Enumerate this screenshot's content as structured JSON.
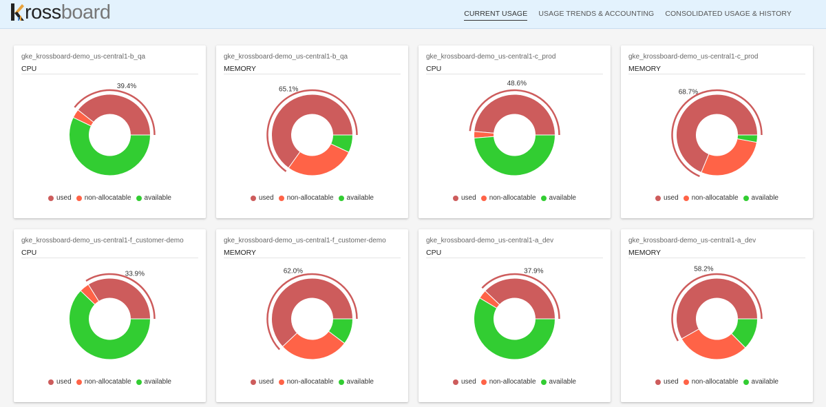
{
  "app": {
    "logo_first": "k",
    "logo_rest_dark": "ross",
    "logo_rest_light": "board"
  },
  "nav": [
    {
      "label": "Current Usage",
      "active": true
    },
    {
      "label": "Usage Trends & Accounting",
      "active": false
    },
    {
      "label": "Consolidated Usage & History",
      "active": false
    }
  ],
  "colors": {
    "used": "#cd5c5c",
    "non_allocatable": "#ff6347",
    "available": "#32cd32",
    "arc": "#cd5c5c"
  },
  "legend": {
    "used": "used",
    "non_allocatable": "non-allocatable",
    "available": "available"
  },
  "cards": [
    {
      "cluster": "gke_krossboard-demo_us-central1-b_qa",
      "resource": "CPU",
      "percent_label": "39.4%",
      "used": 39.4,
      "non_allocatable": 3.5,
      "available": 57.1
    },
    {
      "cluster": "gke_krossboard-demo_us-central1-b_qa",
      "resource": "MEMORY",
      "percent_label": "65.1%",
      "used": 65.1,
      "non_allocatable": 27.9,
      "available": 7.0
    },
    {
      "cluster": "gke_krossboard-demo_us-central1-c_prod",
      "resource": "CPU",
      "percent_label": "48.6%",
      "used": 48.6,
      "non_allocatable": 2.6,
      "available": 48.8
    },
    {
      "cluster": "gke_krossboard-demo_us-central1-c_prod",
      "resource": "MEMORY",
      "percent_label": "68.7%",
      "used": 68.7,
      "non_allocatable": 28.4,
      "available": 2.9
    },
    {
      "cluster": "gke_krossboard-demo_us-central1-f_customer-demo",
      "resource": "CPU",
      "percent_label": "33.9%",
      "used": 33.9,
      "non_allocatable": 3.9,
      "available": 62.2
    },
    {
      "cluster": "gke_krossboard-demo_us-central1-f_customer-demo",
      "resource": "MEMORY",
      "percent_label": "62.0%",
      "used": 62.0,
      "non_allocatable": 27.7,
      "available": 10.3
    },
    {
      "cluster": "gke_krossboard-demo_us-central1-a_dev",
      "resource": "CPU",
      "percent_label": "37.9%",
      "used": 37.9,
      "non_allocatable": 3.5,
      "available": 58.6
    },
    {
      "cluster": "gke_krossboard-demo_us-central1-a_dev",
      "resource": "MEMORY",
      "percent_label": "58.2%",
      "used": 58.2,
      "non_allocatable": 29.2,
      "available": 12.6
    }
  ],
  "chart_data": [
    {
      "type": "pie",
      "title": "gke_krossboard-demo_us-central1-b_qa CPU",
      "categories": [
        "used",
        "non-allocatable",
        "available"
      ],
      "values": [
        39.4,
        3.5,
        57.1
      ],
      "annotation": "39.4%"
    },
    {
      "type": "pie",
      "title": "gke_krossboard-demo_us-central1-b_qa MEMORY",
      "categories": [
        "used",
        "non-allocatable",
        "available"
      ],
      "values": [
        65.1,
        27.9,
        7.0
      ],
      "annotation": "65.1%"
    },
    {
      "type": "pie",
      "title": "gke_krossboard-demo_us-central1-c_prod CPU",
      "categories": [
        "used",
        "non-allocatable",
        "available"
      ],
      "values": [
        48.6,
        2.6,
        48.8
      ],
      "annotation": "48.6%"
    },
    {
      "type": "pie",
      "title": "gke_krossboard-demo_us-central1-c_prod MEMORY",
      "categories": [
        "used",
        "non-allocatable",
        "available"
      ],
      "values": [
        68.7,
        28.4,
        2.9
      ],
      "annotation": "68.7%"
    },
    {
      "type": "pie",
      "title": "gke_krossboard-demo_us-central1-f_customer-demo CPU",
      "categories": [
        "used",
        "non-allocatable",
        "available"
      ],
      "values": [
        33.9,
        3.9,
        62.2
      ],
      "annotation": "33.9%"
    },
    {
      "type": "pie",
      "title": "gke_krossboard-demo_us-central1-f_customer-demo MEMORY",
      "categories": [
        "used",
        "non-allocatable",
        "available"
      ],
      "values": [
        62.0,
        27.7,
        10.3
      ],
      "annotation": "62.0%"
    },
    {
      "type": "pie",
      "title": "gke_krossboard-demo_us-central1-a_dev CPU",
      "categories": [
        "used",
        "non-allocatable",
        "available"
      ],
      "values": [
        37.9,
        3.5,
        58.6
      ],
      "annotation": "37.9%"
    },
    {
      "type": "pie",
      "title": "gke_krossboard-demo_us-central1-a_dev MEMORY",
      "categories": [
        "used",
        "non-allocatable",
        "available"
      ],
      "values": [
        58.2,
        29.2,
        12.6
      ],
      "annotation": "58.2%"
    }
  ]
}
